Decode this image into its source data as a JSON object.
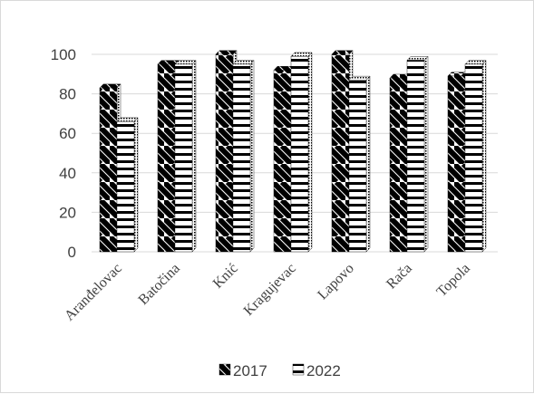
{
  "chart_data": {
    "type": "bar",
    "style": "3d-clustered-column",
    "categories": [
      "Aranđelovac",
      "Batočina",
      "Knić",
      "Kragujevac",
      "Lapovo",
      "Rača",
      "Topola"
    ],
    "series": [
      {
        "name": "2017",
        "values": [
          83,
          95,
          100,
          92,
          100,
          88,
          89
        ],
        "pattern": "diagonal-stripes"
      },
      {
        "name": "2022",
        "values": [
          66,
          95,
          95,
          99,
          87,
          97,
          95
        ],
        "pattern": "horizontal-stripes"
      }
    ],
    "ylim": [
      0,
      100
    ],
    "yticks": [
      0,
      20,
      40,
      60,
      80,
      100
    ],
    "grid": true,
    "legend_position": "bottom",
    "colors": {
      "bar_ink": "#000000",
      "bar_paper": "#ffffff",
      "grid": "#d9d9d9",
      "text": "#404040"
    }
  }
}
